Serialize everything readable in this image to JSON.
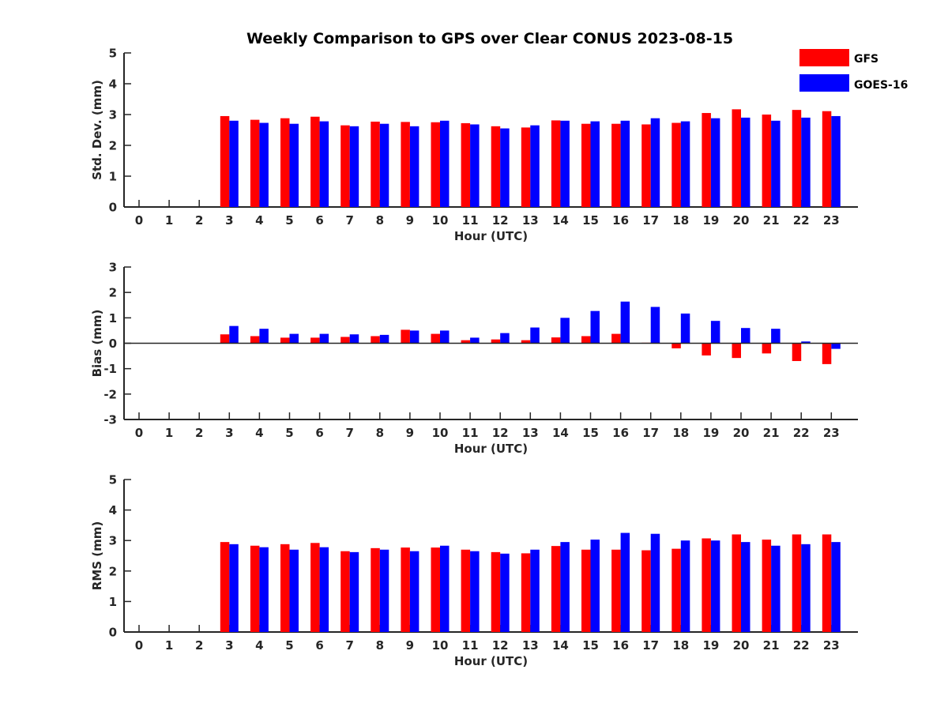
{
  "chart_data": [
    {
      "type": "bar",
      "title": "Weekly Comparison to GPS over Clear CONUS 2023-08-15",
      "xlabel": "Hour (UTC)",
      "ylabel": "Std. Dev. (mm)",
      "ylim": [
        0,
        5
      ],
      "yticks": [
        "0",
        "1",
        "2",
        "3",
        "4",
        "5"
      ],
      "categories": [
        "0",
        "1",
        "2",
        "3",
        "4",
        "5",
        "6",
        "7",
        "8",
        "9",
        "10",
        "11",
        "12",
        "13",
        "14",
        "15",
        "16",
        "17",
        "18",
        "19",
        "20",
        "21",
        "22",
        "23"
      ],
      "legend_position": "top-right",
      "series": [
        {
          "name": "GFS",
          "color": "#ff0000",
          "values": [
            null,
            null,
            null,
            2.95,
            2.83,
            2.88,
            2.93,
            2.65,
            2.77,
            2.76,
            2.75,
            2.72,
            2.62,
            2.58,
            2.81,
            2.7,
            2.7,
            2.68,
            2.73,
            3.05,
            3.17,
            3.0,
            3.15,
            3.11
          ]
        },
        {
          "name": "GOES-16",
          "color": "#0000ff",
          "values": [
            null,
            null,
            null,
            2.8,
            2.73,
            2.7,
            2.78,
            2.62,
            2.7,
            2.62,
            2.8,
            2.68,
            2.55,
            2.65,
            2.8,
            2.78,
            2.8,
            2.88,
            2.78,
            2.88,
            2.9,
            2.8,
            2.9,
            2.95
          ]
        }
      ]
    },
    {
      "type": "bar",
      "xlabel": "Hour (UTC)",
      "ylabel": "Bias (mm)",
      "ylim": [
        -3,
        3
      ],
      "yticks": [
        "-3",
        "-2",
        "-1",
        "0",
        "1",
        "2",
        "3"
      ],
      "categories": [
        "0",
        "1",
        "2",
        "3",
        "4",
        "5",
        "6",
        "7",
        "8",
        "9",
        "10",
        "11",
        "12",
        "13",
        "14",
        "15",
        "16",
        "17",
        "18",
        "19",
        "20",
        "21",
        "22",
        "23"
      ],
      "zero_line": true,
      "series": [
        {
          "name": "GFS",
          "color": "#ff0000",
          "values": [
            null,
            null,
            null,
            0.35,
            0.28,
            0.22,
            0.22,
            0.25,
            0.28,
            0.53,
            0.37,
            0.12,
            0.15,
            0.12,
            0.23,
            0.28,
            0.37,
            0.02,
            -0.2,
            -0.48,
            -0.58,
            -0.4,
            -0.7,
            -0.82
          ]
        },
        {
          "name": "GOES-16",
          "color": "#0000ff",
          "values": [
            null,
            null,
            null,
            0.68,
            0.57,
            0.37,
            0.37,
            0.35,
            0.33,
            0.5,
            0.5,
            0.22,
            0.4,
            0.62,
            1.0,
            1.27,
            1.64,
            1.43,
            1.17,
            0.88,
            0.6,
            0.57,
            0.07,
            -0.22
          ]
        }
      ]
    },
    {
      "type": "bar",
      "xlabel": "Hour (UTC)",
      "ylabel": "RMS (mm)",
      "ylim": [
        0,
        5
      ],
      "yticks": [
        "0",
        "1",
        "2",
        "3",
        "4",
        "5"
      ],
      "categories": [
        "0",
        "1",
        "2",
        "3",
        "4",
        "5",
        "6",
        "7",
        "8",
        "9",
        "10",
        "11",
        "12",
        "13",
        "14",
        "15",
        "16",
        "17",
        "18",
        "19",
        "20",
        "21",
        "22",
        "23"
      ],
      "series": [
        {
          "name": "GFS",
          "color": "#ff0000",
          "values": [
            null,
            null,
            null,
            2.95,
            2.83,
            2.88,
            2.92,
            2.65,
            2.75,
            2.77,
            2.77,
            2.7,
            2.62,
            2.58,
            2.82,
            2.7,
            2.7,
            2.68,
            2.73,
            3.07,
            3.2,
            3.03,
            3.2,
            3.2
          ]
        },
        {
          "name": "GOES-16",
          "color": "#0000ff",
          "values": [
            null,
            null,
            null,
            2.88,
            2.78,
            2.7,
            2.78,
            2.62,
            2.7,
            2.65,
            2.83,
            2.65,
            2.57,
            2.7,
            2.95,
            3.03,
            3.25,
            3.22,
            3.0,
            3.0,
            2.95,
            2.83,
            2.88,
            2.95
          ]
        }
      ]
    }
  ]
}
